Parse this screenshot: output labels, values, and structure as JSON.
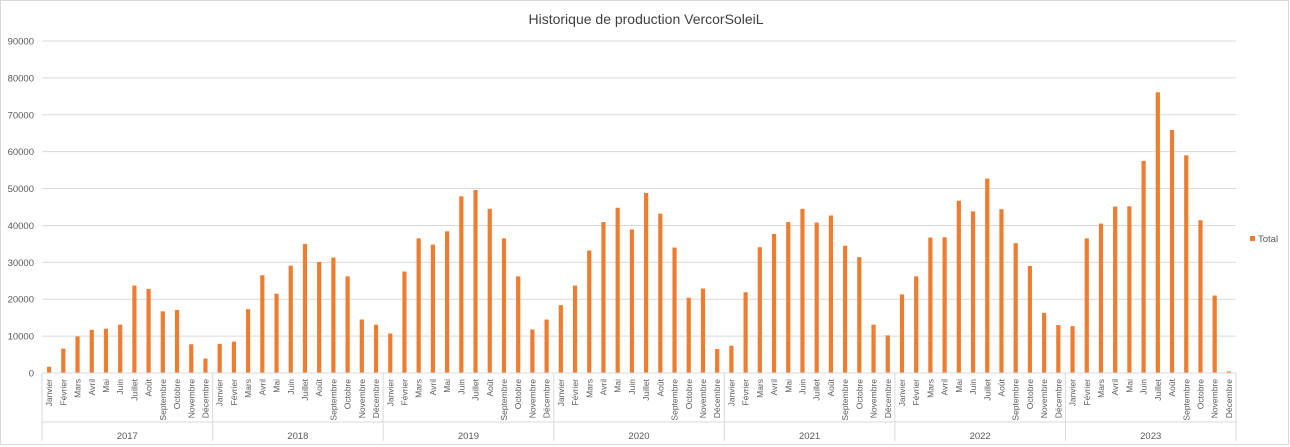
{
  "chart_data": {
    "type": "bar",
    "title": "Historique de production VercorSoleiL",
    "xlabel": "",
    "ylabel": "",
    "ylim": [
      0,
      90000
    ],
    "yticks": [
      0,
      10000,
      20000,
      30000,
      40000,
      50000,
      60000,
      70000,
      80000,
      90000
    ],
    "grid": true,
    "legend_position": "right",
    "months": [
      "Janvier",
      "Février",
      "Mars",
      "Avril",
      "Mai",
      "Juin",
      "Juillet",
      "Août",
      "Septembre",
      "Octobre",
      "Novembre",
      "Décembre"
    ],
    "years": [
      "2017",
      "2018",
      "2019",
      "2020",
      "2021",
      "2022",
      "2023"
    ],
    "series": [
      {
        "name": "Total",
        "color": "#ed7d31",
        "values": [
          1700,
          6600,
          9900,
          11700,
          12000,
          13100,
          23700,
          22800,
          16700,
          17100,
          7800,
          3900,
          7900,
          8500,
          17300,
          26500,
          21500,
          29100,
          35000,
          30100,
          31300,
          26200,
          14500,
          13100,
          10700,
          27500,
          36500,
          34800,
          38400,
          47900,
          49600,
          44500,
          36500,
          26200,
          11800,
          14500,
          18400,
          23700,
          33200,
          40900,
          44800,
          38900,
          48800,
          43200,
          34000,
          20400,
          22900,
          6500,
          7400,
          21900,
          34100,
          37700,
          40900,
          44500,
          40800,
          42700,
          34500,
          31400,
          13100,
          10200,
          21300,
          26200,
          36700,
          36800,
          46700,
          43800,
          52700,
          44400,
          35200,
          29000,
          16300,
          13000,
          12700,
          36500,
          40500,
          45100,
          45200,
          57500,
          76100,
          65900,
          59000,
          41400,
          21000,
          400
        ]
      }
    ]
  }
}
